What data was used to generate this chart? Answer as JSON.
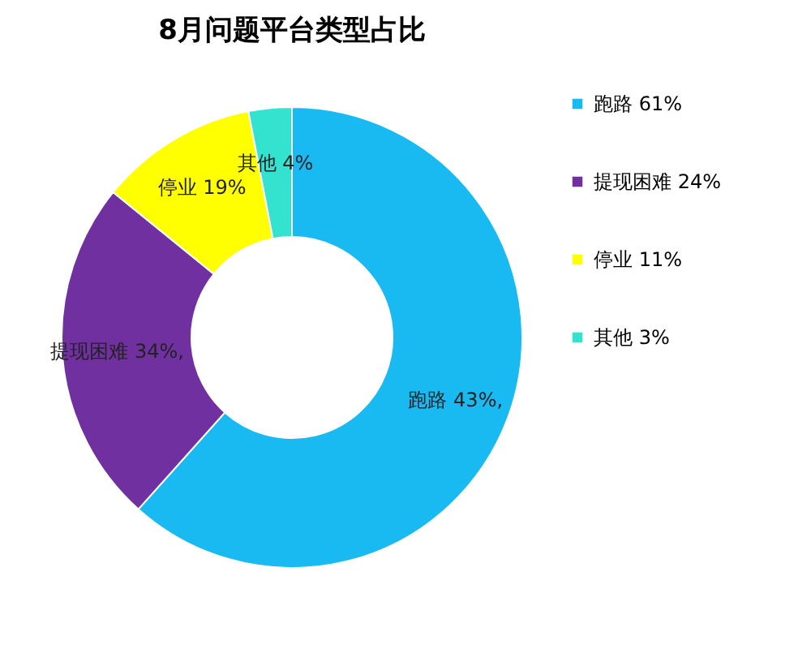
{
  "chart_data": {
    "type": "donut",
    "title": "8月问题平台类型占比",
    "categories": [
      "跑路 61%",
      "提现困难 24%",
      "停业 11%",
      "其他 3%"
    ],
    "values": [
      61,
      24,
      11,
      3
    ],
    "colors": [
      "#19b9f2",
      "#7030a0",
      "#ffff00",
      "#33e3cf"
    ],
    "value_labels": [
      "跑路 43%,",
      "提现困难 34%,",
      "停业 19%",
      "其他 4%"
    ],
    "legend": "right"
  }
}
